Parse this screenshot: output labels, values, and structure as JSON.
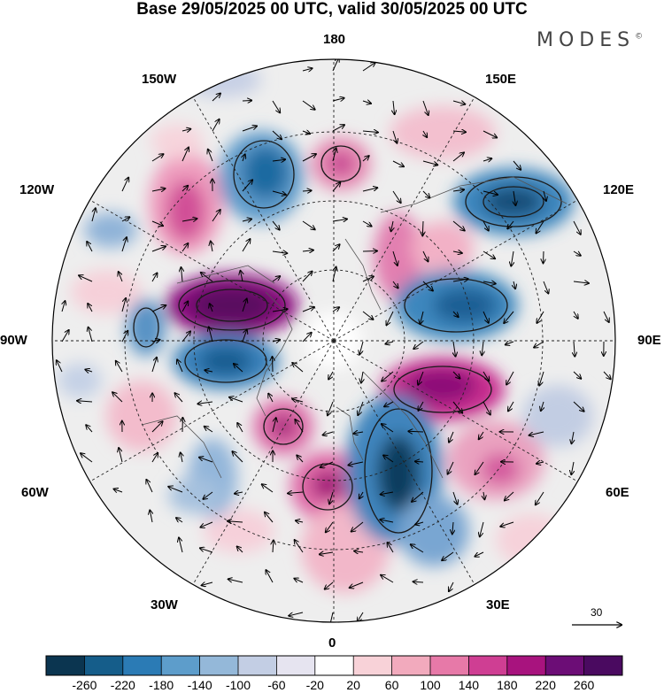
{
  "header": {
    "title": "Base 29/05/2025 00 UTC, valid 30/05/2025 00 UTC",
    "brand": "MODES",
    "brand_mark": "©"
  },
  "map": {
    "projection": "north polar stereographic",
    "meridian_labels": {
      "top": "180",
      "upper_left": "150W",
      "upper_right": "150E",
      "mid_upper_left": "120W",
      "mid_upper_right": "120E",
      "left": "90W",
      "right": "90E",
      "mid_lower_left": "60W",
      "mid_lower_right": "60E",
      "lower_left": "30W",
      "lower_right": "30E",
      "bottom": "0"
    },
    "vector_scale_label": "30"
  },
  "colorbar": {
    "ticks": [
      "-260",
      "-220",
      "-180",
      "-140",
      "-100",
      "-60",
      "-20",
      "20",
      "60",
      "100",
      "140",
      "180",
      "220",
      "260"
    ],
    "colors": [
      "#0b3550",
      "#155d8a",
      "#2b7bb5",
      "#5d9dcb",
      "#94b8d9",
      "#c3cee4",
      "#e6e4f0",
      "#ffffff",
      "#f8d2d8",
      "#f2aabd",
      "#e779a8",
      "#cf3e93",
      "#a8137e",
      "#6c0d76",
      "#4a0a60"
    ]
  }
}
